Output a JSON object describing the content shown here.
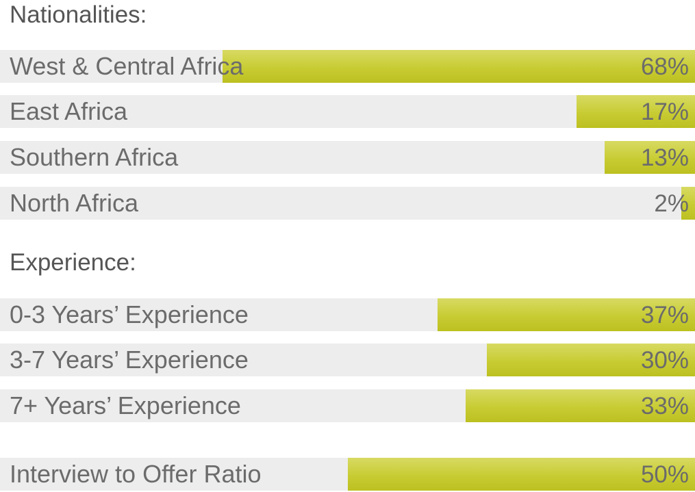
{
  "chart_data": [
    {
      "type": "bar",
      "title": "Nationalities:",
      "unit": "%",
      "categories": [
        "West & Central Africa",
        "East Africa",
        "Southern Africa",
        "North Africa"
      ],
      "values": [
        68,
        17,
        13,
        2
      ],
      "value_labels": [
        "68%",
        "17%",
        "13%",
        "2%"
      ],
      "xlim": [
        0,
        100
      ],
      "orientation": "horizontal",
      "bar_direction": "right-to-left"
    },
    {
      "type": "bar",
      "title": "Experience:",
      "unit": "%",
      "categories": [
        "0-3 Years’ Experience",
        "3-7 Years’ Experience",
        "7+  Years’ Experience"
      ],
      "values": [
        37,
        30,
        33
      ],
      "value_labels": [
        "37%",
        "30%",
        "33%"
      ],
      "xlim": [
        0,
        100
      ],
      "orientation": "horizontal",
      "bar_direction": "right-to-left"
    },
    {
      "type": "bar",
      "title": "",
      "unit": "%",
      "categories": [
        "Interview to Offer Ratio"
      ],
      "values": [
        50
      ],
      "value_labels": [
        "50%"
      ],
      "xlim": [
        0,
        100
      ],
      "orientation": "horizontal",
      "bar_direction": "right-to-left"
    }
  ],
  "colors": {
    "bar_fill": "#c8cc33",
    "track": "#ededed",
    "text": "#6b6b6b"
  }
}
